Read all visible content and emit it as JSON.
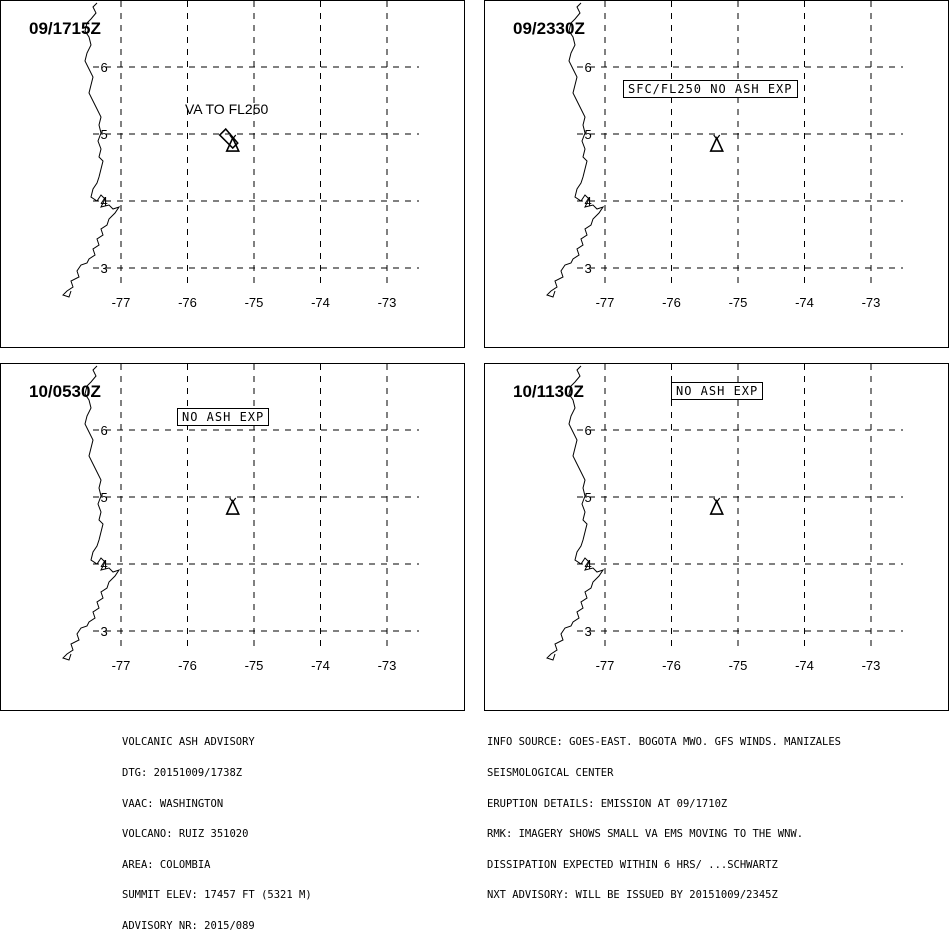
{
  "panels": [
    {
      "time": "09/1715Z",
      "label": "VA TO FL250",
      "label_style": "plain",
      "ash_cloud": true
    },
    {
      "time": "09/2330Z",
      "label": "SFC/FL250 NO ASH EXP",
      "label_style": "boxed",
      "ash_cloud": false
    },
    {
      "time": "10/0530Z",
      "label": "NO ASH EXP",
      "label_style": "boxed",
      "ash_cloud": false
    },
    {
      "time": "10/1130Z",
      "label": "NO ASH EXP",
      "label_style": "boxed",
      "ash_cloud": false
    }
  ],
  "map": {
    "lon_labels": [
      "-77",
      "-76",
      "-75",
      "-74",
      "-73"
    ],
    "lat_labels": [
      "6",
      "5",
      "4",
      "3"
    ],
    "volcano_lon": -75.32,
    "volcano_lat": 4.88,
    "grid": "dashed"
  },
  "advisory_left": [
    "VOLCANIC ASH ADVISORY",
    "DTG: 20151009/1738Z",
    "VAAC: WASHINGTON",
    "VOLCANO: RUIZ 351020",
    "AREA: COLOMBIA",
    "SUMMIT ELEV: 17457 FT (5321 M)",
    "ADVISORY NR: 2015/089"
  ],
  "advisory_right": [
    "INFO SOURCE: GOES-EAST. BOGOTA MWO. GFS WINDS. MANIZALES",
    "SEISMOLOGICAL CENTER",
    "ERUPTION DETAILS: EMISSION AT 09/1710Z",
    "RMK: IMAGERY SHOWS SMALL VA EMS MOVING TO THE WNW.",
    "DISSIPATION EXPECTED WITHIN 6 HRS/ ...SCHWARTZ",
    "NXT ADVISORY: WILL BE ISSUED BY 20151009/2345Z"
  ]
}
